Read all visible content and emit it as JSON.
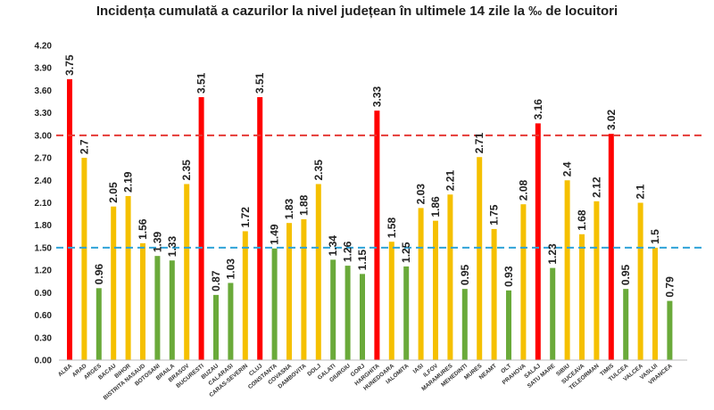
{
  "chart_data": {
    "type": "bar",
    "title": "Incidența cumulată a cazurilor la nivel județean în ultimele 14 zile la ‰ de locuitori",
    "xlabel": "",
    "ylabel": "",
    "ylim": [
      0,
      4.2
    ],
    "yticks": [
      "0.00",
      "0.30",
      "0.60",
      "0.90",
      "1.20",
      "1.50",
      "1.80",
      "2.10",
      "2.40",
      "2.70",
      "3.00",
      "3.30",
      "3.60",
      "3.90",
      "4.20"
    ],
    "grid": false,
    "legend": "none",
    "categories": [
      "ALBA",
      "ARAD",
      "ARGES",
      "BACAU",
      "BIHOR",
      "BISTRITA NASAUD",
      "BOTOSANI",
      "BRAILA",
      "BRASOV",
      "BUCURESTI",
      "BUZAU",
      "CALARASI",
      "CARAS-SEVERIN",
      "CLUJ",
      "CONSTANTA",
      "COVASNA",
      "DAMBOVITA",
      "DOLJ",
      "GALATI",
      "GIURGIU",
      "GORJ",
      "HARGHITA",
      "HUNEDOARA",
      "IALOMITA",
      "IASI",
      "ILFOV",
      "MARAMURES",
      "MEHEDINTI",
      "MURES",
      "NEAMT",
      "OLT",
      "PRAHOVA",
      "SALAJ",
      "SATU MARE",
      "SIBIU",
      "SUCEAVA",
      "TELEORMAN",
      "TIMIS",
      "TULCEA",
      "VALCEA",
      "VASLUI",
      "VRANCEA"
    ],
    "values": [
      3.75,
      2.7,
      0.96,
      2.05,
      2.19,
      1.56,
      1.39,
      1.33,
      2.35,
      3.51,
      0.87,
      1.03,
      1.72,
      3.51,
      1.49,
      1.83,
      1.88,
      2.35,
      1.34,
      1.26,
      1.15,
      3.33,
      1.58,
      1.25,
      2.03,
      1.86,
      2.21,
      0.95,
      2.71,
      1.75,
      0.93,
      2.08,
      3.16,
      1.23,
      2.4,
      1.68,
      2.12,
      3.02,
      0.95,
      2.1,
      1.5,
      0.79
    ],
    "labels": [
      "3.75",
      "2.7",
      "0.96",
      "2.05",
      "2.19",
      "1.56",
      "1.39",
      "1.33",
      "2.35",
      "3.51",
      "0.87",
      "1.03",
      "1.72",
      "3.51",
      "1.49",
      "1.83",
      "1.88",
      "2.35",
      "1.34",
      "1.26",
      "1.15",
      "3.33",
      "1.58",
      "1.25",
      "2.03",
      "1.86",
      "2.21",
      "0.95",
      "2.71",
      "1.75",
      "0.93",
      "2.08",
      "3.16",
      "1.23",
      "2.4",
      "1.68",
      "2.12",
      "3.02",
      "0.95",
      "2.1",
      "1.5",
      "0.79"
    ],
    "thresholds": [
      {
        "value": 3.0,
        "color": "#e53935",
        "style": "dashed"
      },
      {
        "value": 1.5,
        "color": "#2ea3d8",
        "style": "dashed"
      }
    ],
    "colors": {
      "red": "#ff0000",
      "yellow": "#f5c000",
      "green": "#6aaa3a"
    }
  }
}
